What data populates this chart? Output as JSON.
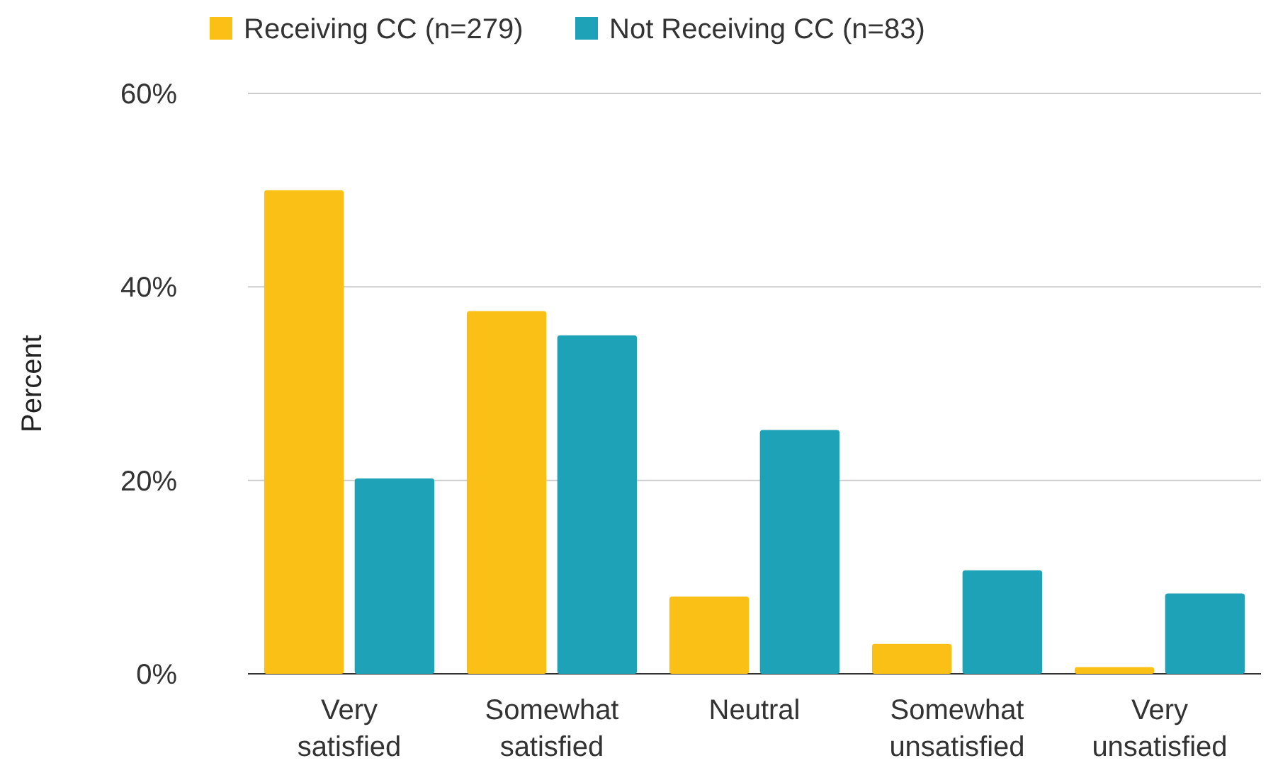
{
  "chart_data": {
    "type": "bar",
    "ylabel": "Percent",
    "categories": [
      "Very satisfied",
      "Somewhat satisfied",
      "Neutral",
      "Somewhat unsatisfied",
      "Very unsatisfied"
    ],
    "series": [
      {
        "name": "Receiving CC (n=279)",
        "color": "#fbc015",
        "values": [
          50.0,
          37.5,
          8.0,
          3.1,
          0.7
        ]
      },
      {
        "name": "Not Receiving CC (n=83)",
        "color": "#1da2b8",
        "values": [
          20.2,
          35.0,
          25.2,
          10.7,
          8.3
        ]
      }
    ],
    "ylim": [
      0,
      60
    ],
    "yticks": [
      {
        "value": 0,
        "label": "0%"
      },
      {
        "value": 20,
        "label": "20%"
      },
      {
        "value": 40,
        "label": "40%"
      },
      {
        "value": 60,
        "label": "60%"
      }
    ],
    "grid": "y",
    "legend": "top"
  }
}
